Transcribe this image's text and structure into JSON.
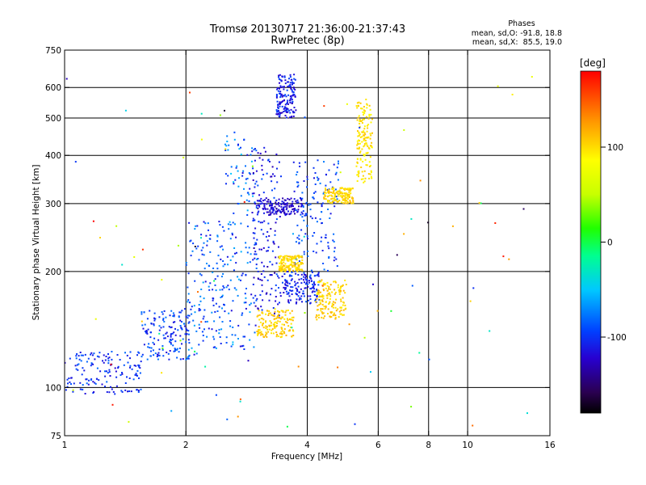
{
  "chart_data": {
    "type": "scatter",
    "title": "Tromsø 20130717 21:36:00-21:37:43",
    "subtitle": "RwPretec (8p)",
    "xlabel": "Frequency [MHz]",
    "ylabel": "Stationary phase Virtual Height [km]",
    "x_scale": "log2",
    "y_scale": "log",
    "xlim": [
      1,
      16
    ],
    "ylim": [
      75,
      750
    ],
    "x_ticks": [
      {
        "value": 1,
        "label": "1"
      },
      {
        "value": 2,
        "label": "2"
      },
      {
        "value": 4,
        "label": "4"
      },
      {
        "value": 6,
        "label": "6"
      },
      {
        "value": 8,
        "label": "8"
      },
      {
        "value": 10,
        "label": "10"
      },
      {
        "value": 16,
        "label": "16"
      }
    ],
    "x_gridlines": [
      2,
      4,
      6,
      8,
      10
    ],
    "y_ticks": [
      {
        "value": 75,
        "label": "75"
      },
      {
        "value": 100,
        "label": "100"
      },
      {
        "value": 200,
        "label": "200"
      },
      {
        "value": 300,
        "label": "300"
      },
      {
        "value": 400,
        "label": "400"
      },
      {
        "value": 500,
        "label": "500"
      },
      {
        "value": 600,
        "label": "600"
      },
      {
        "value": 750,
        "label": "750"
      }
    ],
    "y_gridlines": [
      100,
      200,
      300,
      400,
      500,
      600
    ],
    "grid": true,
    "stats_header": "Phases",
    "stats_lines": [
      "mean, sd,O: -91.8, 18.8",
      "mean, sd,X:  85.5, 19.0"
    ],
    "colorbar": {
      "label": "[deg]",
      "range": [
        -180,
        180
      ],
      "ticks": [
        {
          "value": 100,
          "label": "100"
        },
        {
          "value": 0,
          "label": "0"
        },
        {
          "value": -100,
          "label": "-100"
        }
      ],
      "colormap": "rainbow (black-purple-blue-cyan-green-yellow-red)"
    },
    "clusters": [
      {
        "x": [
          1.0,
          1.55
        ],
        "y": [
          96,
          125
        ],
        "phase": [
          -120,
          -80
        ]
      },
      {
        "x": [
          1.55,
          2.05
        ],
        "y": [
          118,
          160
        ],
        "phase": [
          -120,
          -75
        ]
      },
      {
        "x": [
          2.0,
          2.5
        ],
        "y": [
          118,
          270
        ],
        "phase": [
          -115,
          -60
        ]
      },
      {
        "x": [
          2.5,
          3.0
        ],
        "y": [
          125,
          460
        ],
        "phase": [
          -120,
          -50
        ]
      },
      {
        "x": [
          2.9,
          3.45
        ],
        "y": [
          150,
          420
        ],
        "phase": [
          -135,
          -85
        ]
      },
      {
        "x": [
          3.0,
          3.9
        ],
        "y": [
          280,
          310
        ],
        "phase": [
          -135,
          -105
        ]
      },
      {
        "x": [
          3.35,
          3.75
        ],
        "y": [
          500,
          650
        ],
        "phase": [
          -130,
          -90
        ]
      },
      {
        "x": [
          3.4,
          4.3
        ],
        "y": [
          165,
          200
        ],
        "phase": [
          -125,
          -85
        ]
      },
      {
        "x": [
          3.7,
          4.8
        ],
        "y": [
          200,
          390
        ],
        "phase": [
          -115,
          -75
        ]
      },
      {
        "x": [
          4.4,
          5.2
        ],
        "y": [
          300,
          330
        ],
        "phase": [
          90,
          115
        ]
      },
      {
        "x": [
          5.3,
          5.8
        ],
        "y": [
          340,
          560
        ],
        "phase": [
          85,
          110
        ]
      },
      {
        "x": [
          3.0,
          3.7
        ],
        "y": [
          135,
          160
        ],
        "phase": [
          90,
          120
        ]
      },
      {
        "x": [
          3.4,
          3.9
        ],
        "y": [
          200,
          220
        ],
        "phase": [
          90,
          115
        ]
      },
      {
        "x": [
          4.2,
          5.0
        ],
        "y": [
          150,
          190
        ],
        "phase": [
          90,
          120
        ]
      },
      {
        "x": [
          1.0,
          14.5
        ],
        "y": [
          78,
          640
        ],
        "phase": [
          -180,
          180
        ]
      }
    ]
  }
}
